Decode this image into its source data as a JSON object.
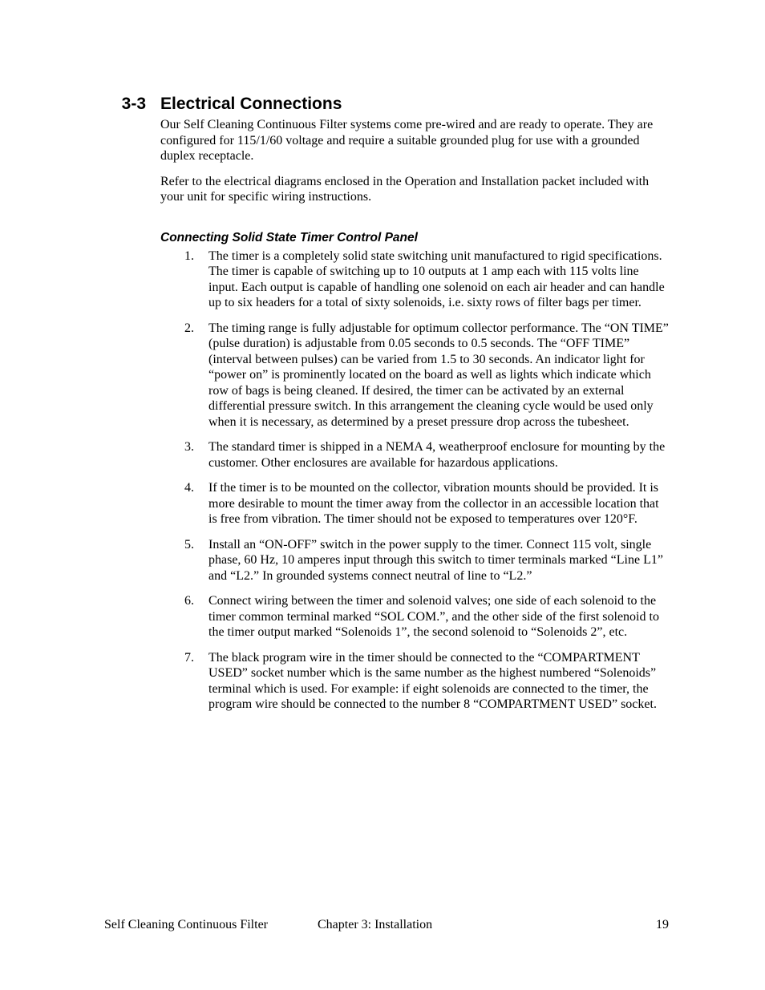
{
  "section": {
    "number": "3-3",
    "title": "Electrical Connections",
    "intro_paragraphs": [
      "Our Self Cleaning Continuous Filter systems come pre-wired and are ready to operate. They are configured for 115/1/60 voltage and require a suitable grounded plug for use with a grounded duplex receptacle.",
      "Refer to the electrical diagrams enclosed in the Operation and Installation packet included with your unit for specific wiring instructions."
    ]
  },
  "subheading": "Connecting Solid State Timer Control Panel",
  "list_items": [
    "The timer is a completely solid state switching unit manufactured to rigid specifications.  The timer is capable of switching up to 10 outputs at 1 amp each with 115 volts line input.  Each output is capable of handling one solenoid on each air header and can handle up to six headers for a total of sixty solenoids, i.e. sixty rows of filter bags per timer.",
    "The timing range is fully adjustable for optimum collector performance.  The “ON TIME” (pulse duration) is adjustable from 0.05 seconds to 0.5 seconds.  The “OFF TIME” (interval between pulses) can be varied from 1.5 to 30 seconds.  An indicator light for “power on” is prominently located on the board as well as lights which indicate which row of bags is being cleaned.  If desired, the timer can be activated by an external differential pressure switch.  In this arrangement the cleaning cycle would be used only when it is necessary, as determined by a preset pressure drop across the tubesheet.",
    "The standard timer is shipped in a NEMA 4, weatherproof enclosure for mounting by the customer.  Other enclosures are available for hazardous applications.",
    "If the timer is to be mounted on the collector, vibration mounts should be provided.  It is more desirable to mount the timer away from the collector in an accessible location that is free from vibration.  The timer should not be exposed to temperatures over 120°F.",
    "Install an “ON-OFF” switch in the power supply to the timer.  Connect 115 volt, single phase, 60 Hz, 10 amperes input through this switch to timer terminals marked “Line L1” and “L2.”  In grounded systems connect neutral of line to “L2.”",
    "Connect wiring between the timer and solenoid valves; one side of each solenoid to the timer common terminal marked “SOL COM.”, and the other side of the first solenoid to the timer output marked “Solenoids 1”, the second solenoid to “Solenoids 2”, etc.",
    "The black program wire in the timer should be connected to the “COMPARTMENT USED” socket number which is the same number as the highest numbered “Solenoids” terminal which is used.  For example:  if eight solenoids are connected to the timer, the program wire should be connected to the number 8 “COMPARTMENT USED” socket."
  ],
  "footer": {
    "left": "Self Cleaning Continuous Filter",
    "center": "Chapter 3: Installation",
    "page_number": "19"
  }
}
